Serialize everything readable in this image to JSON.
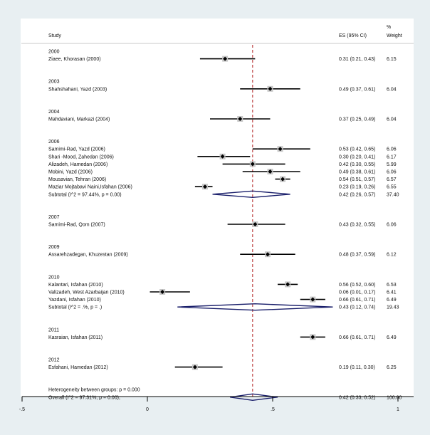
{
  "chart_data": {
    "type": "forest",
    "title": "",
    "xlabel": "",
    "columns": {
      "study": "Study",
      "es": "ES (95% CI)",
      "weight_line1": "%",
      "weight_line2": "Weight"
    },
    "x_ticks": [
      -0.5,
      0,
      0.5,
      1
    ],
    "x_tick_labels": [
      "-.5",
      "0",
      ".5",
      "1"
    ],
    "xlim": [
      -0.5,
      1.0
    ],
    "overall_line": 0.42,
    "colors": {
      "background": "#e8eff2",
      "diamond": "#1a1f6b",
      "ref_line": "#b22222",
      "marker_box": "#c8c8c8"
    },
    "rows": [
      {
        "kind": "group",
        "label": "2000"
      },
      {
        "kind": "study",
        "label": "Ziaee, Khorasan (2000)",
        "es": 0.31,
        "lo": 0.21,
        "hi": 0.43,
        "es_text": "0.31 (0.21, 0.43)",
        "weight": "6.15"
      },
      {
        "kind": "gap"
      },
      {
        "kind": "group",
        "label": "2003"
      },
      {
        "kind": "study",
        "label": "Shahshahani, Yazd (2003)",
        "es": 0.49,
        "lo": 0.37,
        "hi": 0.61,
        "es_text": "0.49 (0.37, 0.61)",
        "weight": "6.04"
      },
      {
        "kind": "gap"
      },
      {
        "kind": "group",
        "label": "2004"
      },
      {
        "kind": "study",
        "label": "Mahdaviani, Markazi (2004)",
        "es": 0.37,
        "lo": 0.25,
        "hi": 0.49,
        "es_text": "0.37 (0.25, 0.49)",
        "weight": "6.04"
      },
      {
        "kind": "gap"
      },
      {
        "kind": "group",
        "label": "2006"
      },
      {
        "kind": "study",
        "label": "Samimi-Rad, Yazd (2006)",
        "es": 0.53,
        "lo": 0.42,
        "hi": 0.65,
        "es_text": "0.53 (0.42, 0.65)",
        "weight": "6.06"
      },
      {
        "kind": "study",
        "label": "Shari -Mood, Zahedan (2006)",
        "es": 0.3,
        "lo": 0.2,
        "hi": 0.41,
        "es_text": "0.30 (0.20, 0.41)",
        "weight": "6.17"
      },
      {
        "kind": "study",
        "label": "Alizadeh, Hamedan (2006)",
        "es": 0.42,
        "lo": 0.3,
        "hi": 0.55,
        "es_text": "0.42 (0.30, 0.55)",
        "weight": "5.99"
      },
      {
        "kind": "study",
        "label": "Mobini, Yazd (2006)",
        "es": 0.49,
        "lo": 0.38,
        "hi": 0.61,
        "es_text": "0.49 (0.38, 0.61)",
        "weight": "6.06"
      },
      {
        "kind": "study",
        "label": "Mousavian, Tehran (2006)",
        "es": 0.54,
        "lo": 0.51,
        "hi": 0.57,
        "es_text": "0.54 (0.51, 0.57)",
        "weight": "6.57"
      },
      {
        "kind": "study",
        "label": "Maziar Mojtabavi Naini,Isfahan (2006)",
        "es": 0.23,
        "lo": 0.19,
        "hi": 0.26,
        "es_text": "0.23 (0.19, 0.26)",
        "weight": "6.55"
      },
      {
        "kind": "subtotal",
        "label": "Subtotal  (I^2 = 97.44%, p = 0.00)",
        "es": 0.42,
        "lo": 0.26,
        "hi": 0.57,
        "es_text": "0.42 (0.26, 0.57)",
        "weight": "37.40"
      },
      {
        "kind": "gap"
      },
      {
        "kind": "group",
        "label": "2007"
      },
      {
        "kind": "study",
        "label": "Samimi-Rad, Qom (2007)",
        "es": 0.43,
        "lo": 0.32,
        "hi": 0.55,
        "es_text": "0.43 (0.32, 0.55)",
        "weight": "6.06"
      },
      {
        "kind": "gap"
      },
      {
        "kind": "group",
        "label": "2009"
      },
      {
        "kind": "study",
        "label": "Assarehzadegan, Khuzestan  (2009)",
        "es": 0.48,
        "lo": 0.37,
        "hi": 0.59,
        "es_text": "0.48 (0.37, 0.59)",
        "weight": "6.12"
      },
      {
        "kind": "gap"
      },
      {
        "kind": "group",
        "label": "2010"
      },
      {
        "kind": "study",
        "label": "Kalantari, Isfahan (2010)",
        "es": 0.56,
        "lo": 0.52,
        "hi": 0.6,
        "es_text": "0.56 (0.52, 0.60)",
        "weight": "6.53"
      },
      {
        "kind": "study",
        "label": "Valizadeh, West Azarbaijan (2010)",
        "es": 0.06,
        "lo": 0.01,
        "hi": 0.17,
        "es_text": "0.06 (0.01, 0.17)",
        "weight": "6.41"
      },
      {
        "kind": "study",
        "label": "Yazdani, Isfahan (2010)",
        "es": 0.66,
        "lo": 0.61,
        "hi": 0.71,
        "es_text": "0.66 (0.61, 0.71)",
        "weight": "6.49"
      },
      {
        "kind": "subtotal",
        "label": "Subtotal  (I^2 = .%, p = .)",
        "es": 0.43,
        "lo": 0.12,
        "hi": 0.74,
        "es_text": "0.43 (0.12, 0.74)",
        "weight": "19.43"
      },
      {
        "kind": "gap"
      },
      {
        "kind": "group",
        "label": "2011"
      },
      {
        "kind": "study",
        "label": "Kasraian, Isfahan (2011)",
        "es": 0.66,
        "lo": 0.61,
        "hi": 0.71,
        "es_text": "0.66 (0.61, 0.71)",
        "weight": "6.49"
      },
      {
        "kind": "gap"
      },
      {
        "kind": "group",
        "label": "2012"
      },
      {
        "kind": "study",
        "label": "Esfahani, Hamedan (2012)",
        "es": 0.19,
        "lo": 0.11,
        "hi": 0.3,
        "es_text": "0.19 (0.11, 0.30)",
        "weight": "6.25"
      },
      {
        "kind": "gap"
      },
      {
        "kind": "text",
        "label": "Heterogeneity between groups: p = 0.000"
      },
      {
        "kind": "overall",
        "label": "Overall  (I^2 = 97.31%, p = 0.00);",
        "es": 0.42,
        "lo": 0.33,
        "hi": 0.52,
        "es_text": "0.42 (0.33, 0.52)",
        "weight": "100.00"
      }
    ]
  }
}
